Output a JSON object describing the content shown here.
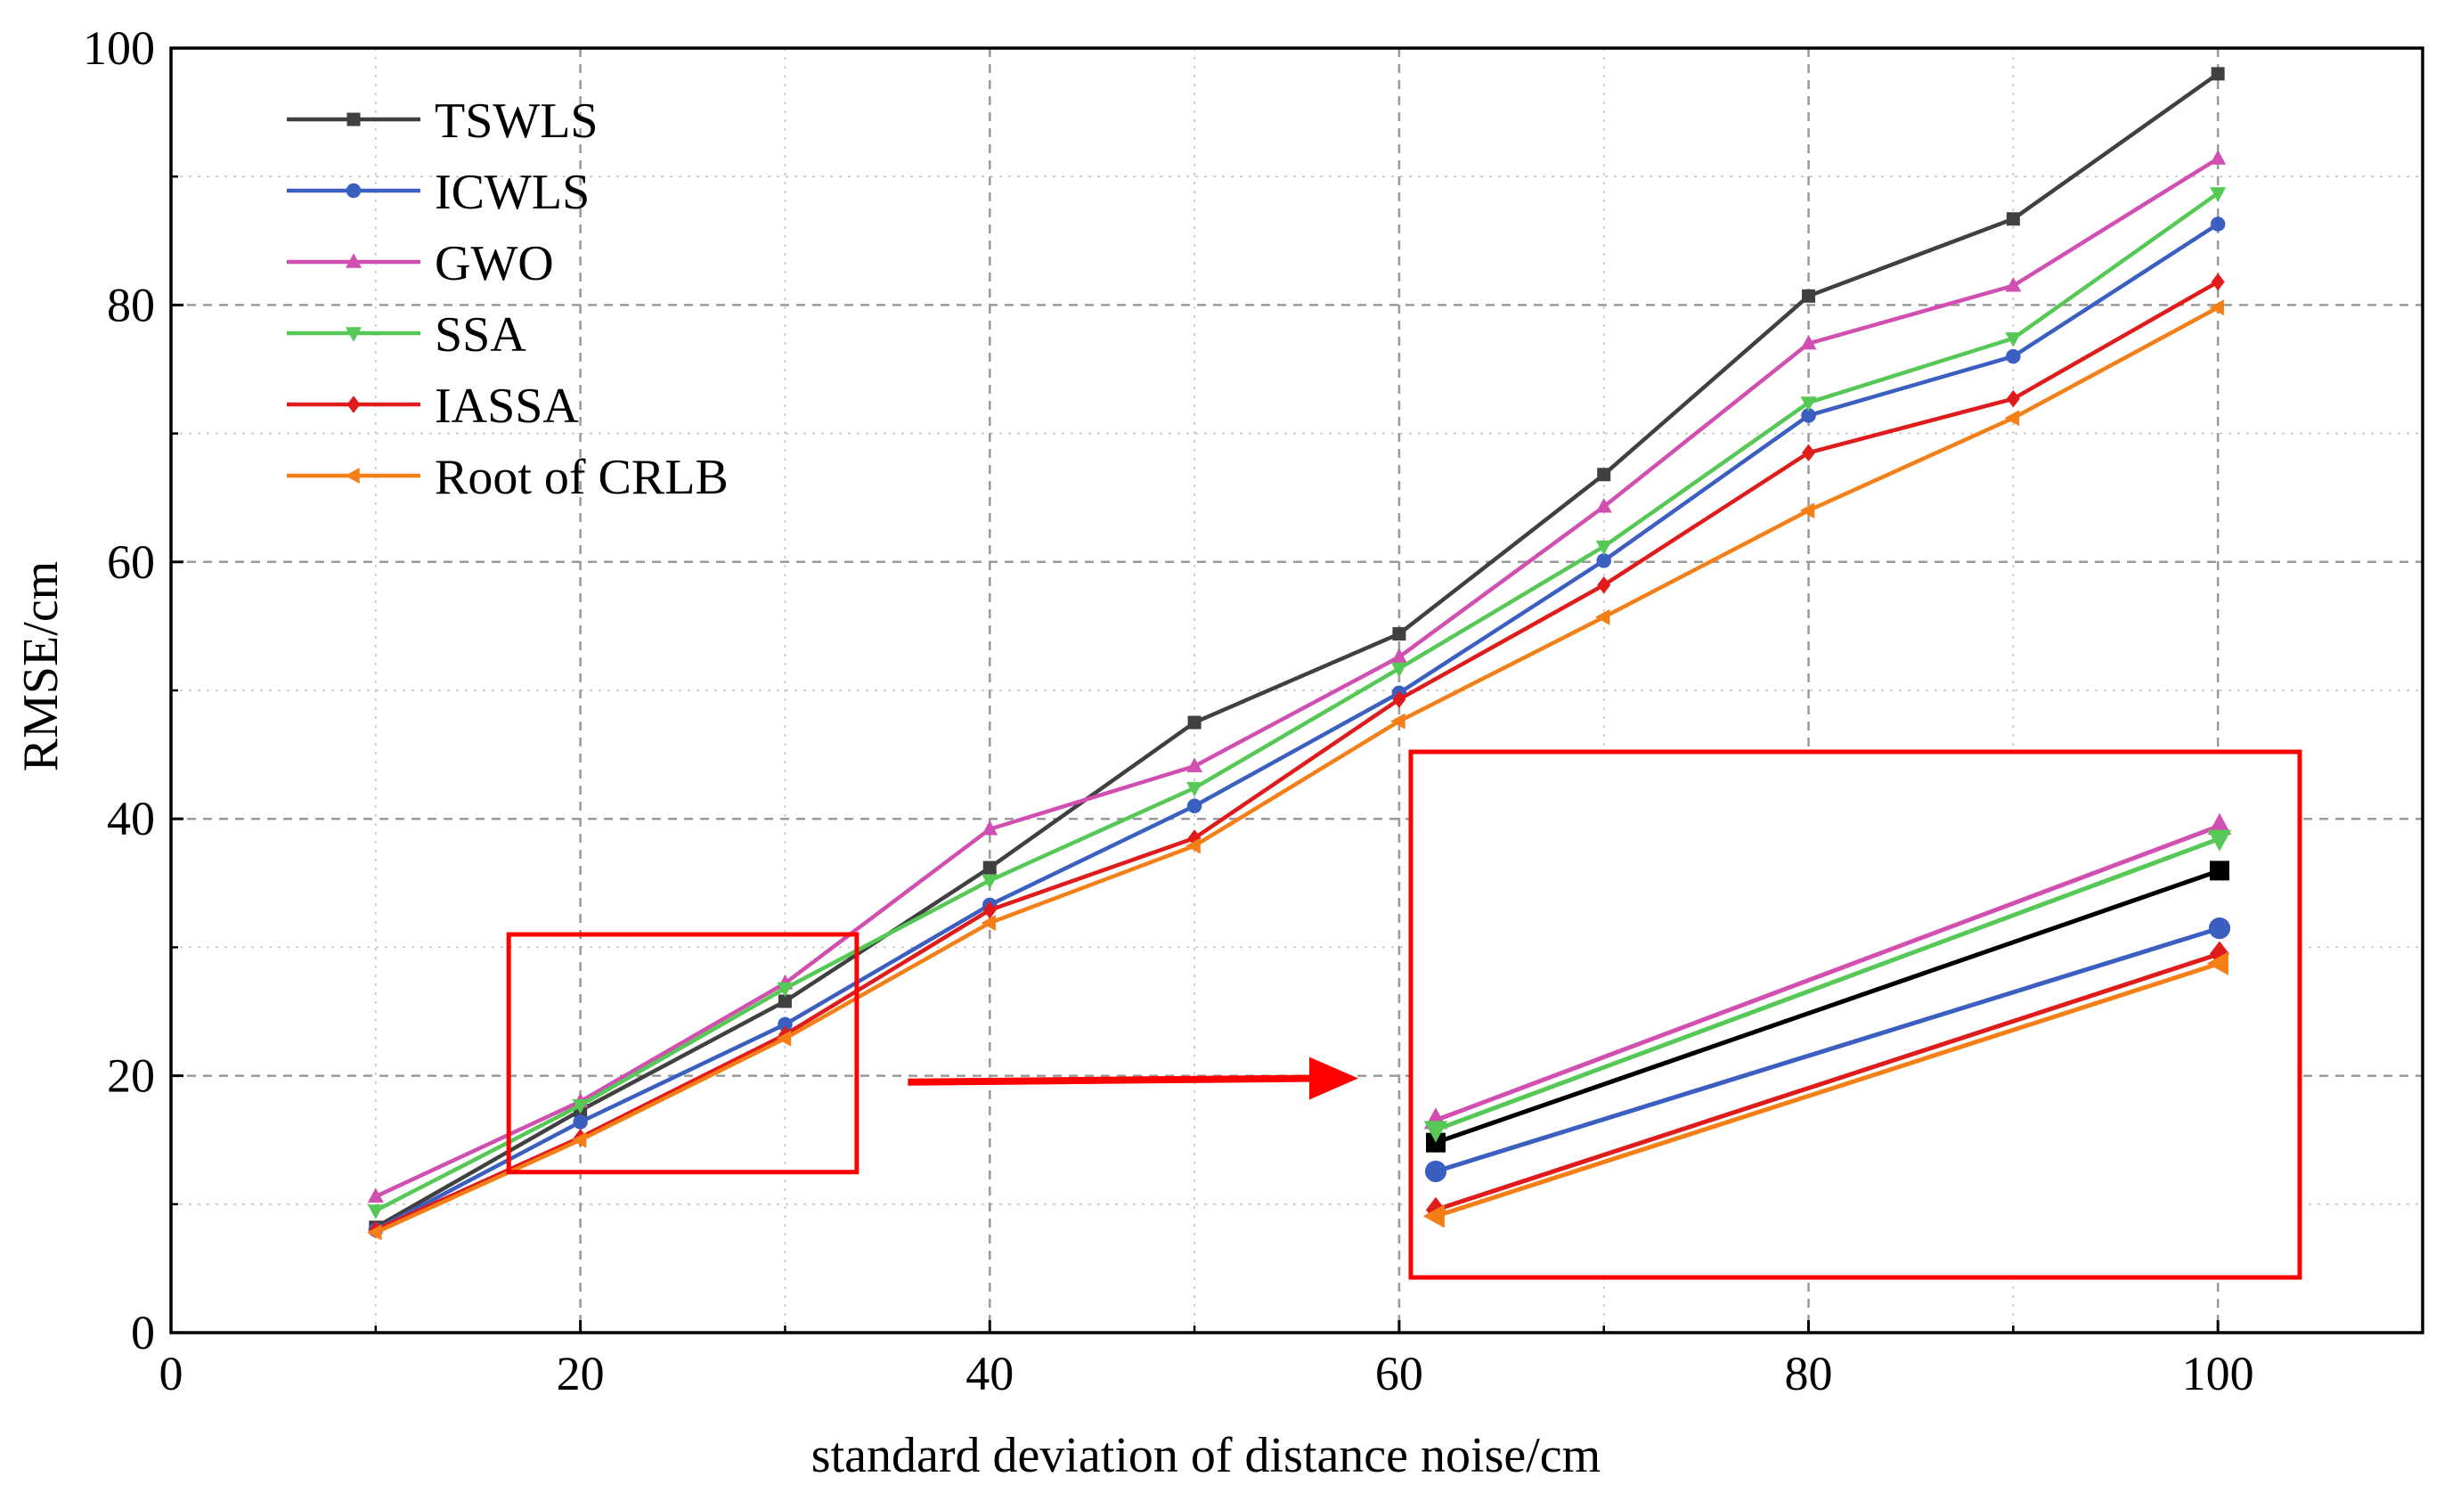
{
  "chart_data": {
    "type": "line",
    "title": "",
    "xlabel": "standard deviation of distance noise/cm",
    "ylabel": "RMSE/cm",
    "xlim": [
      0,
      110
    ],
    "ylim": [
      0,
      100
    ],
    "xticks": [
      0,
      20,
      40,
      60,
      80,
      100
    ],
    "yticks": [
      0,
      20,
      40,
      60,
      80,
      100
    ],
    "grid": true,
    "legend_position": "top-left",
    "x": [
      10,
      20,
      30,
      40,
      50,
      60,
      70,
      80,
      90,
      100
    ],
    "series": [
      {
        "name": "TSWLS",
        "color": "#404040",
        "marker": "square",
        "values": [
          8.2,
          17.3,
          25.8,
          36.2,
          47.5,
          54.4,
          66.8,
          80.7,
          86.7,
          98.0
        ]
      },
      {
        "name": "ICWLS",
        "color": "#3b5fc1",
        "marker": "circle",
        "values": [
          8.0,
          16.4,
          24.0,
          33.3,
          41.0,
          49.8,
          60.1,
          71.4,
          76.0,
          86.3
        ]
      },
      {
        "name": "GWO",
        "color": "#d04fb0",
        "marker": "triangle-up",
        "values": [
          10.6,
          18.0,
          27.2,
          39.2,
          44.1,
          52.6,
          64.3,
          77.0,
          81.5,
          91.4
        ]
      },
      {
        "name": "SSA",
        "color": "#55c855",
        "marker": "triangle-down",
        "values": [
          9.5,
          17.7,
          26.8,
          35.2,
          42.4,
          51.7,
          61.2,
          72.4,
          77.4,
          88.7
        ]
      },
      {
        "name": "IASSA",
        "color": "#e01b1b",
        "marker": "diamond",
        "values": [
          8.0,
          15.2,
          23.2,
          32.9,
          38.5,
          49.3,
          58.2,
          68.5,
          72.7,
          81.8
        ]
      },
      {
        "name": "Root of CRLB",
        "color": "#f57f17",
        "marker": "triangle-left",
        "values": [
          7.8,
          15.0,
          22.9,
          31.9,
          37.9,
          47.6,
          55.7,
          64.0,
          71.2,
          79.8
        ]
      }
    ],
    "annotations": [
      {
        "type": "zoom-box",
        "x_range": [
          16.5,
          33.5
        ],
        "y_range": [
          12.5,
          31
        ],
        "color": "#ff0000"
      },
      {
        "type": "arrow",
        "from": [
          36,
          19.5
        ],
        "to": [
          58,
          19.8
        ],
        "color": "#ff0000"
      },
      {
        "type": "inset",
        "description": "zoomed view of x from 20 to 30",
        "x": [
          20,
          30
        ],
        "inset_values": {
          "TSWLS": [
            17.3,
            25.8
          ],
          "ICWLS": [
            16.4,
            24.0
          ],
          "GWO": [
            18.0,
            27.2
          ],
          "SSA": [
            17.7,
            26.8
          ],
          "IASSA": [
            15.2,
            23.2
          ],
          "Root of CRLB": [
            15.0,
            22.9
          ]
        },
        "inset_ylim": [
          14.2,
          28.4
        ]
      }
    ]
  }
}
